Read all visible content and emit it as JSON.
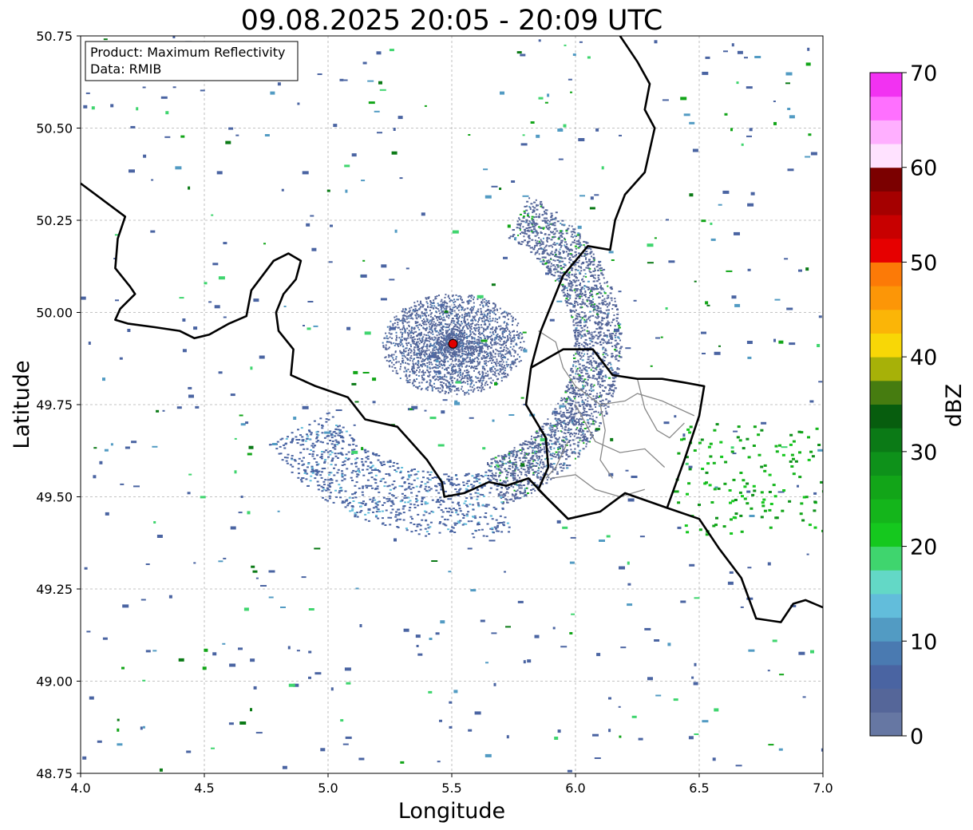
{
  "title": "09.08.2025 20:05 - 20:09 UTC",
  "info_box": {
    "product": "Product: Maximum Reflectivity",
    "source": "Data: RMIB"
  },
  "axes": {
    "xlabel": "Longitude",
    "ylabel": "Latitude",
    "xlim": [
      4.0,
      7.0
    ],
    "ylim": [
      48.75,
      50.75
    ],
    "xticks": [
      "4.0",
      "4.5",
      "5.0",
      "5.5",
      "6.0",
      "6.5",
      "7.0"
    ],
    "yticks": [
      "48.75",
      "49.00",
      "49.25",
      "49.50",
      "49.75",
      "50.00",
      "50.25",
      "50.50",
      "50.75"
    ],
    "grid": true
  },
  "radar_site": {
    "lon": 5.505,
    "lat": 49.915,
    "color": "#e00000"
  },
  "colorbar": {
    "label": "dBZ",
    "ticks": [
      "0",
      "10",
      "20",
      "30",
      "40",
      "50",
      "60",
      "70"
    ],
    "range": [
      0,
      70
    ],
    "colors": [
      "#6677a3",
      "#556699",
      "#4a64a2",
      "#4a7ab1",
      "#529bc3",
      "#62bddb",
      "#63d8c6",
      "#3fd56e",
      "#15c81e",
      "#14b51b",
      "#12a518",
      "#0e911a",
      "#0b7a16",
      "#075d0e",
      "#467c10",
      "#a7b108",
      "#f8d706",
      "#fbb507",
      "#fc9607",
      "#fc7a07",
      "#e60000",
      "#c80000",
      "#a50000",
      "#7b0000",
      "#ffe2ff",
      "#ffafff",
      "#ff70ff",
      "#f232f2"
    ]
  },
  "borders": {
    "country": [
      [
        [
          4.0,
          50.35
        ],
        [
          4.1,
          50.3
        ],
        [
          4.18,
          50.26
        ],
        [
          4.15,
          50.2
        ],
        [
          4.14,
          50.12
        ],
        [
          4.2,
          50.07
        ],
        [
          4.22,
          50.05
        ],
        [
          4.16,
          50.01
        ],
        [
          4.14,
          49.98
        ],
        [
          4.19,
          49.97
        ],
        [
          4.3,
          49.96
        ],
        [
          4.4,
          49.95
        ],
        [
          4.46,
          49.93
        ],
        [
          4.52,
          49.94
        ],
        [
          4.6,
          49.97
        ],
        [
          4.67,
          49.99
        ],
        [
          4.69,
          50.06
        ],
        [
          4.78,
          50.14
        ],
        [
          4.84,
          50.16
        ],
        [
          4.89,
          50.14
        ],
        [
          4.87,
          50.09
        ],
        [
          4.82,
          50.05
        ],
        [
          4.79,
          50.0
        ],
        [
          4.8,
          49.95
        ],
        [
          4.86,
          49.9
        ],
        [
          4.85,
          49.83
        ],
        [
          4.95,
          49.8
        ],
        [
          5.08,
          49.77
        ],
        [
          5.15,
          49.71
        ],
        [
          5.28,
          49.69
        ],
        [
          5.4,
          49.6
        ],
        [
          5.46,
          49.54
        ],
        [
          5.47,
          49.5
        ],
        [
          5.55,
          49.51
        ],
        [
          5.65,
          49.54
        ],
        [
          5.72,
          49.53
        ],
        [
          5.81,
          49.55
        ],
        [
          5.88,
          49.5
        ],
        [
          5.97,
          49.44
        ],
        [
          6.1,
          49.46
        ],
        [
          6.2,
          49.51
        ],
        [
          6.37,
          49.47
        ],
        [
          6.5,
          49.44
        ],
        [
          6.58,
          49.36
        ],
        [
          6.67,
          49.28
        ],
        [
          6.73,
          49.17
        ],
        [
          6.83,
          49.16
        ],
        [
          6.88,
          49.21
        ],
        [
          6.93,
          49.22
        ],
        [
          7.0,
          49.2
        ]
      ],
      [
        [
          5.82,
          49.85
        ],
        [
          5.86,
          49.95
        ],
        [
          5.95,
          50.1
        ],
        [
          6.05,
          50.18
        ],
        [
          6.14,
          50.17
        ],
        [
          6.16,
          50.25
        ],
        [
          6.2,
          50.32
        ],
        [
          6.28,
          50.38
        ],
        [
          6.32,
          50.5
        ],
        [
          6.28,
          50.55
        ],
        [
          6.3,
          50.62
        ],
        [
          6.25,
          50.68
        ],
        [
          6.2,
          50.73
        ],
        [
          6.18,
          50.75
        ]
      ],
      [
        [
          5.82,
          49.85
        ],
        [
          5.8,
          49.75
        ],
        [
          5.88,
          49.66
        ],
        [
          5.89,
          49.58
        ],
        [
          5.85,
          49.52
        ],
        [
          5.97,
          49.44
        ]
      ],
      [
        [
          5.82,
          49.85
        ],
        [
          5.95,
          49.9
        ],
        [
          6.07,
          49.9
        ],
        [
          6.15,
          49.83
        ],
        [
          6.25,
          49.82
        ],
        [
          6.35,
          49.82
        ],
        [
          6.44,
          49.81
        ],
        [
          6.52,
          49.8
        ],
        [
          6.5,
          49.72
        ],
        [
          6.44,
          49.6
        ],
        [
          6.37,
          49.47
        ]
      ]
    ],
    "region": [
      [
        [
          5.85,
          49.95
        ],
        [
          5.92,
          49.92
        ],
        [
          5.95,
          49.85
        ],
        [
          6.0,
          49.8
        ],
        [
          6.1,
          49.75
        ],
        [
          6.2,
          49.76
        ],
        [
          6.25,
          49.78
        ],
        [
          6.35,
          49.76
        ],
        [
          6.48,
          49.72
        ]
      ],
      [
        [
          6.0,
          49.75
        ],
        [
          6.08,
          49.65
        ],
        [
          6.18,
          49.62
        ],
        [
          6.28,
          49.63
        ],
        [
          6.36,
          49.58
        ]
      ],
      [
        [
          5.9,
          49.55
        ],
        [
          6.0,
          49.56
        ],
        [
          6.08,
          49.52
        ],
        [
          6.18,
          49.5
        ],
        [
          6.28,
          49.52
        ]
      ],
      [
        [
          6.1,
          49.75
        ],
        [
          6.12,
          49.68
        ],
        [
          6.1,
          49.6
        ],
        [
          6.15,
          49.55
        ]
      ],
      [
        [
          6.25,
          49.82
        ],
        [
          6.28,
          49.74
        ],
        [
          6.33,
          49.68
        ],
        [
          6.38,
          49.66
        ],
        [
          6.44,
          49.7
        ]
      ],
      [
        [
          5.97,
          49.65
        ],
        [
          5.92,
          49.58
        ],
        [
          5.88,
          49.55
        ]
      ]
    ]
  }
}
